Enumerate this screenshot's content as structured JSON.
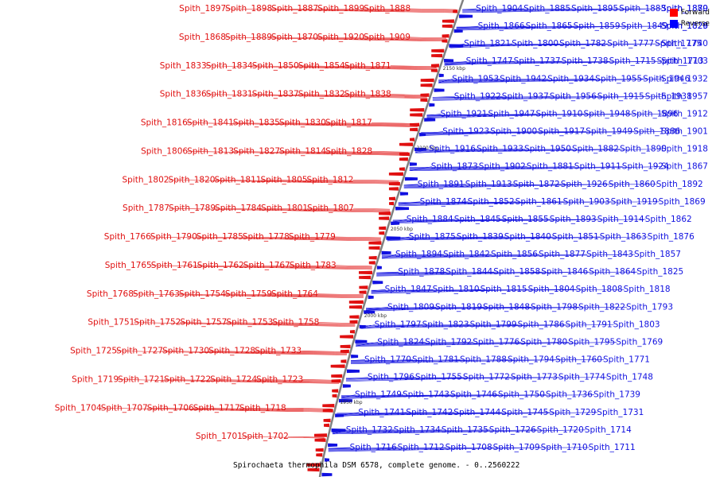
{
  "caption": "Spirochaeta thermophila DSM 6578, complete genome. - 0..2560222",
  "legend": [
    {
      "label": "Forward",
      "color": "#ff0000"
    },
    {
      "label": "Reverse",
      "color": "#0000ff"
    }
  ],
  "colors": {
    "forward": "#e01010",
    "reverse": "#1010e0",
    "backbone": "#808080"
  },
  "ticks": [
    "2150 kbp",
    "2100 kbp",
    "2050 kbp",
    "2000 kbp",
    "1950 kbp"
  ],
  "forward_labels": [
    "Spith_1888",
    "Spith_1899",
    "Spith_1887",
    "Spith_1898",
    "Spith_1897",
    "Spith_1909",
    "Spith_1920",
    "Spith_1870",
    "Spith_1889",
    "Spith_1868",
    "Spith_1871",
    "Spith_1854",
    "Spith_1850",
    "Spith_1834",
    "Spith_1833",
    "Spith_1838",
    "Spith_1832",
    "Spith_1837",
    "Spith_1831",
    "Spith_1836",
    "Spith_1817",
    "Spith_1830",
    "Spith_1835",
    "Spith_1841",
    "Spith_1816",
    "Spith_1828",
    "Spith_1814",
    "Spith_1827",
    "Spith_1813",
    "Spith_1806",
    "Spith_1812",
    "Spith_1805",
    "Spith_1811",
    "Spith_1820",
    "Spith_1802",
    "Spith_1807",
    "Spith_1801",
    "Spith_1784",
    "Spith_1789",
    "Spith_1787",
    "Spith_1779",
    "Spith_1778",
    "Spith_1785",
    "Spith_1790",
    "Spith_1766",
    "Spith_1783",
    "Spith_1767",
    "Spith_1762",
    "Spith_1761",
    "Spith_1765",
    "Spith_1764",
    "Spith_1759",
    "Spith_1754",
    "Spith_1763",
    "Spith_1768",
    "Spith_1758",
    "Spith_1753",
    "Spith_1757",
    "Spith_1752",
    "Spith_1751",
    "Spith_1733",
    "Spith_1728",
    "Spith_1730",
    "Spith_1727",
    "Spith_1725",
    "Spith_1723",
    "Spith_1724",
    "Spith_1722",
    "Spith_1721",
    "Spith_1719",
    "Spith_1718",
    "Spith_1717",
    "Spith_1706",
    "Spith_1707",
    "Spith_1704",
    "Spith_1702",
    "Spith_1701"
  ],
  "reverse_labels": [
    "Spith_1904",
    "Spith_1885",
    "Spith_1895",
    "Spith_1883",
    "Spith_1880",
    "Spith_1879",
    "Spith_1866",
    "Spith_1865",
    "Spith_1859",
    "Spith_1849",
    "Spith_1826",
    "Spith_1829",
    "Spith_1821",
    "Spith_1800",
    "Spith_1782",
    "Spith_1777",
    "Spith_1775",
    "Spith_1740",
    "Spith_1747",
    "Spith_1737",
    "Spith_1738",
    "Spith_1715",
    "Spith_1713",
    "Spith_1703",
    "Spith_1953",
    "Spith_1942",
    "Spith_1934",
    "Spith_1955",
    "Spith_1946",
    "Spith_1932",
    "Spith_1922",
    "Spith_1937",
    "Spith_1956",
    "Spith_1915",
    "Spith_1938",
    "Spith_1957",
    "Spith_1921",
    "Spith_1947",
    "Spith_1910",
    "Spith_1948",
    "Spith_1896",
    "Spith_1912",
    "Spith_1923",
    "Spith_1900",
    "Spith_1917",
    "Spith_1949",
    "Spith_1886",
    "Spith_1901",
    "Spith_1916",
    "Spith_1933",
    "Spith_1950",
    "Spith_1882",
    "Spith_1890",
    "Spith_1918",
    "Spith_1873",
    "Spith_1902",
    "Spith_1881",
    "Spith_1911",
    "Spith_1924",
    "Spith_1867",
    "Spith_1891",
    "Spith_1913",
    "Spith_1872",
    "Spith_1926",
    "Spith_1860",
    "Spith_1892",
    "Spith_1874",
    "Spith_1852",
    "Spith_1861",
    "Spith_1903",
    "Spith_1919",
    "Spith_1869",
    "Spith_1884",
    "Spith_1845",
    "Spith_1855",
    "Spith_1893",
    "Spith_1914",
    "Spith_1862",
    "Spith_1875",
    "Spith_1839",
    "Spith_1840",
    "Spith_1851",
    "Spith_1863",
    "Spith_1876",
    "Spith_1894",
    "Spith_1842",
    "Spith_1856",
    "Spith_1877",
    "Spith_1843",
    "Spith_1857",
    "Spith_1878",
    "Spith_1844",
    "Spith_1858",
    "Spith_1846",
    "Spith_1864",
    "Spith_1825",
    "Spith_1847",
    "Spith_1810",
    "Spith_1815",
    "Spith_1804",
    "Spith_1808",
    "Spith_1818",
    "Spith_1809",
    "Spith_1819",
    "Spith_1848",
    "Spith_1798",
    "Spith_1822",
    "Spith_1793",
    "Spith_1797",
    "Spith_1823",
    "Spith_1799",
    "Spith_1786",
    "Spith_1791",
    "Spith_1803",
    "Spith_1824",
    "Spith_1792",
    "Spith_1776",
    "Spith_1780",
    "Spith_1795",
    "Spith_1769",
    "Spith_1770",
    "Spith_1781",
    "Spith_1788",
    "Spith_1794",
    "Spith_1760",
    "Spith_1771",
    "Spith_1796",
    "Spith_1755",
    "Spith_1772",
    "Spith_1773",
    "Spith_1774",
    "Spith_1748",
    "Spith_1749",
    "Spith_1743",
    "Spith_1746",
    "Spith_1750",
    "Spith_1736",
    "Spith_1739",
    "Spith_1741",
    "Spith_1742",
    "Spith_1744",
    "Spith_1745",
    "Spith_1729",
    "Spith_1731",
    "Spith_1732",
    "Spith_1734",
    "Spith_1735",
    "Spith_1726",
    "Spith_1720",
    "Spith_1714",
    "Spith_1716",
    "Spith_1712",
    "Spith_1708",
    "Spith_1709",
    "Spith_1710",
    "Spith_1711"
  ]
}
